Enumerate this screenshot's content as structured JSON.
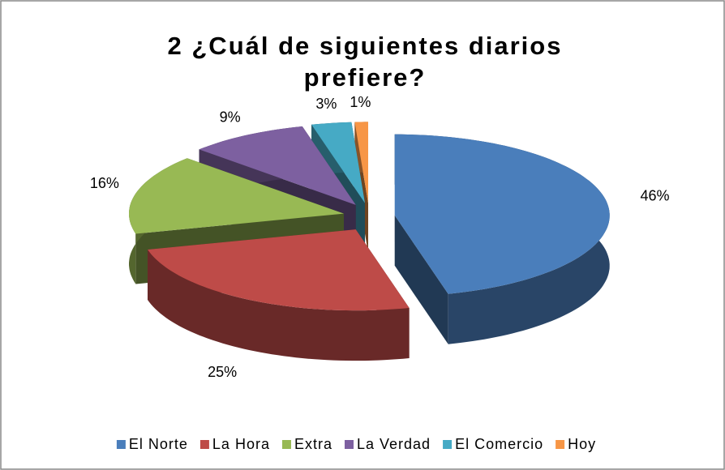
{
  "chart_data": {
    "type": "pie3d",
    "title": "2 ¿Cuál de siguientes diarios prefiere?",
    "categories": [
      "El Norte",
      "La Hora",
      "Extra",
      "La Verdad",
      "El Comercio",
      "Hoy"
    ],
    "values": [
      46,
      25,
      16,
      9,
      3,
      1
    ],
    "value_labels": [
      "46%",
      "25%",
      "16%",
      "9%",
      "3%",
      "1%"
    ],
    "colors": [
      "#4a7ebb",
      "#be4b48",
      "#98b954",
      "#7d60a0",
      "#46aac5",
      "#f79646"
    ],
    "legend": "bottom"
  }
}
